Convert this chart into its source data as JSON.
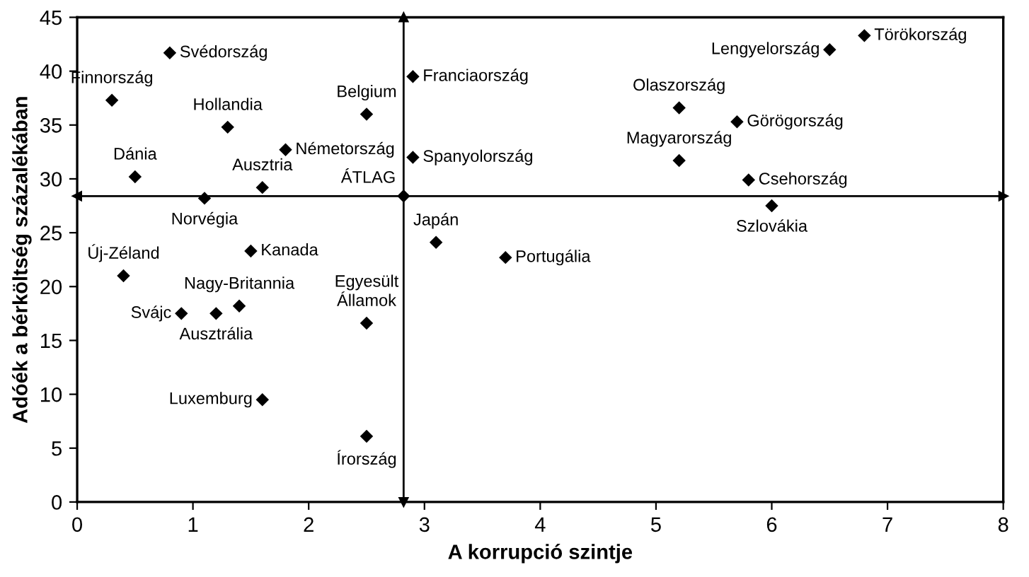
{
  "chart_data": {
    "type": "scatter",
    "xlabel": "A korrupció szintje",
    "ylabel": "Adóék a bérköltség százalékában",
    "xlim": [
      0,
      8
    ],
    "xticks": [
      0,
      1,
      2,
      3,
      4,
      5,
      6,
      7,
      8
    ],
    "ylim": [
      0,
      45
    ],
    "yticks": [
      0,
      5,
      10,
      15,
      20,
      25,
      30,
      35,
      40,
      45
    ],
    "marker": "diamond",
    "grid": false,
    "series": [
      {
        "color": "#000000",
        "x": [
          0.8,
          0.3,
          0.5,
          1.1,
          1.3,
          1.6,
          1.8,
          2.5,
          2.82,
          2.9,
          2.9,
          3.1,
          3.7,
          5.2,
          5.2,
          5.7,
          6.5,
          6.8,
          5.8,
          6.0,
          1.5,
          0.4,
          0.9,
          1.2,
          1.4,
          2.5,
          1.6,
          2.5
        ],
        "values": [
          41.7,
          37.3,
          30.2,
          28.2,
          34.8,
          29.2,
          32.7,
          36.0,
          28.4,
          39.5,
          32.0,
          24.1,
          22.7,
          36.6,
          31.7,
          35.3,
          42.0,
          43.3,
          29.9,
          27.5,
          23.3,
          21.0,
          17.5,
          17.5,
          18.2,
          16.6,
          9.5,
          6.1
        ]
      }
    ],
    "ref_lines": [
      {
        "axis": "x",
        "value": 2.82,
        "color": "#000000"
      },
      {
        "axis": "y",
        "value": 28.4,
        "color": "#000000"
      }
    ],
    "annotations": [
      {
        "text": "Svédország",
        "x": 0.8,
        "y": 41.7
      },
      {
        "text": "Finnország",
        "x": 0.3,
        "y": 37.3
      },
      {
        "text": "Dánia",
        "x": 0.5,
        "y": 30.2
      },
      {
        "text": "Norvégia",
        "x": 1.1,
        "y": 28.2
      },
      {
        "text": "Hollandia",
        "x": 1.3,
        "y": 34.8
      },
      {
        "text": "Ausztria",
        "x": 1.6,
        "y": 29.2
      },
      {
        "text": "Németország",
        "x": 1.8,
        "y": 32.7
      },
      {
        "text": "Belgium",
        "x": 2.5,
        "y": 36.0
      },
      {
        "text": "ÁTLAG",
        "x": 2.82,
        "y": 28.4
      },
      {
        "text": "Franciaország",
        "x": 2.9,
        "y": 39.5
      },
      {
        "text": "Spanyolország",
        "x": 2.9,
        "y": 32.0
      },
      {
        "text": "Japán",
        "x": 3.1,
        "y": 24.1
      },
      {
        "text": "Portugália",
        "x": 3.7,
        "y": 22.7
      },
      {
        "text": "Olaszország",
        "x": 5.2,
        "y": 36.6
      },
      {
        "text": "Magyarország",
        "x": 5.2,
        "y": 31.7
      },
      {
        "text": "Görögország",
        "x": 5.7,
        "y": 35.3
      },
      {
        "text": "Lengyelország",
        "x": 6.5,
        "y": 42.0
      },
      {
        "text": "Törökország",
        "x": 6.8,
        "y": 43.3
      },
      {
        "text": "Csehország",
        "x": 5.8,
        "y": 29.9
      },
      {
        "text": "Szlovákia",
        "x": 6.0,
        "y": 27.5
      },
      {
        "text": "Kanada",
        "x": 1.5,
        "y": 23.3
      },
      {
        "text": "Új-Zéland",
        "x": 0.4,
        "y": 21.0
      },
      {
        "text": "Svájc",
        "x": 0.9,
        "y": 17.5
      },
      {
        "text": "Ausztrália",
        "x": 1.2,
        "y": 17.5
      },
      {
        "text": "Nagy-Britannia",
        "x": 1.4,
        "y": 18.2
      },
      {
        "text": "Egyesült\nÁllamok",
        "x": 2.5,
        "y": 16.6
      },
      {
        "text": "Luxemburg",
        "x": 1.6,
        "y": 9.5
      },
      {
        "text": "Írország",
        "x": 2.5,
        "y": 6.1
      }
    ]
  }
}
